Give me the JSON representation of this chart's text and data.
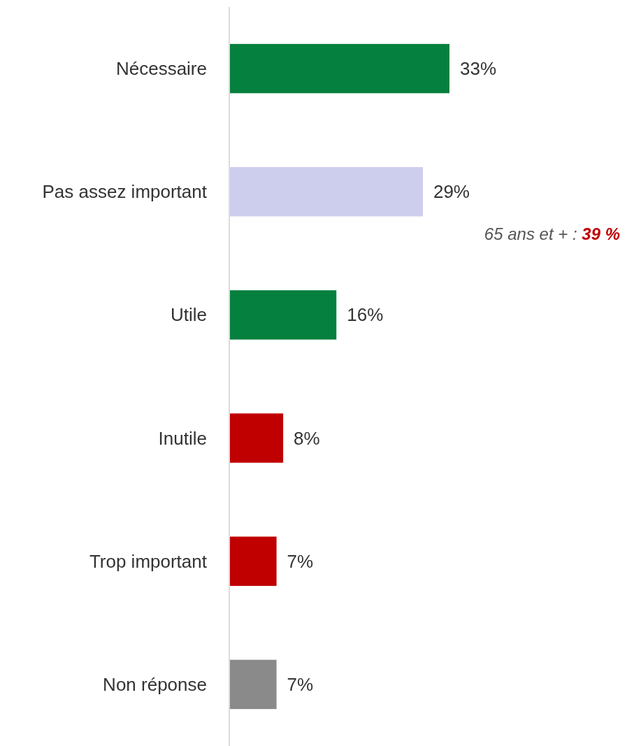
{
  "chart_data": {
    "type": "bar",
    "orientation": "horizontal",
    "categories": [
      "Nécessaire",
      "Pas assez important",
      "Utile",
      "Inutile",
      "Trop important",
      "Non réponse"
    ],
    "values": [
      33,
      29,
      16,
      8,
      7,
      7
    ],
    "colors": [
      "#06803e",
      "#cdcdee",
      "#06803e",
      "#c00000",
      "#c00000",
      "#8a8a8a"
    ],
    "value_labels": [
      "33%",
      "29%",
      "16%",
      "8%",
      "7%",
      "7%"
    ],
    "annotations": [
      "65 ans et + : 39 %"
    ]
  }
}
